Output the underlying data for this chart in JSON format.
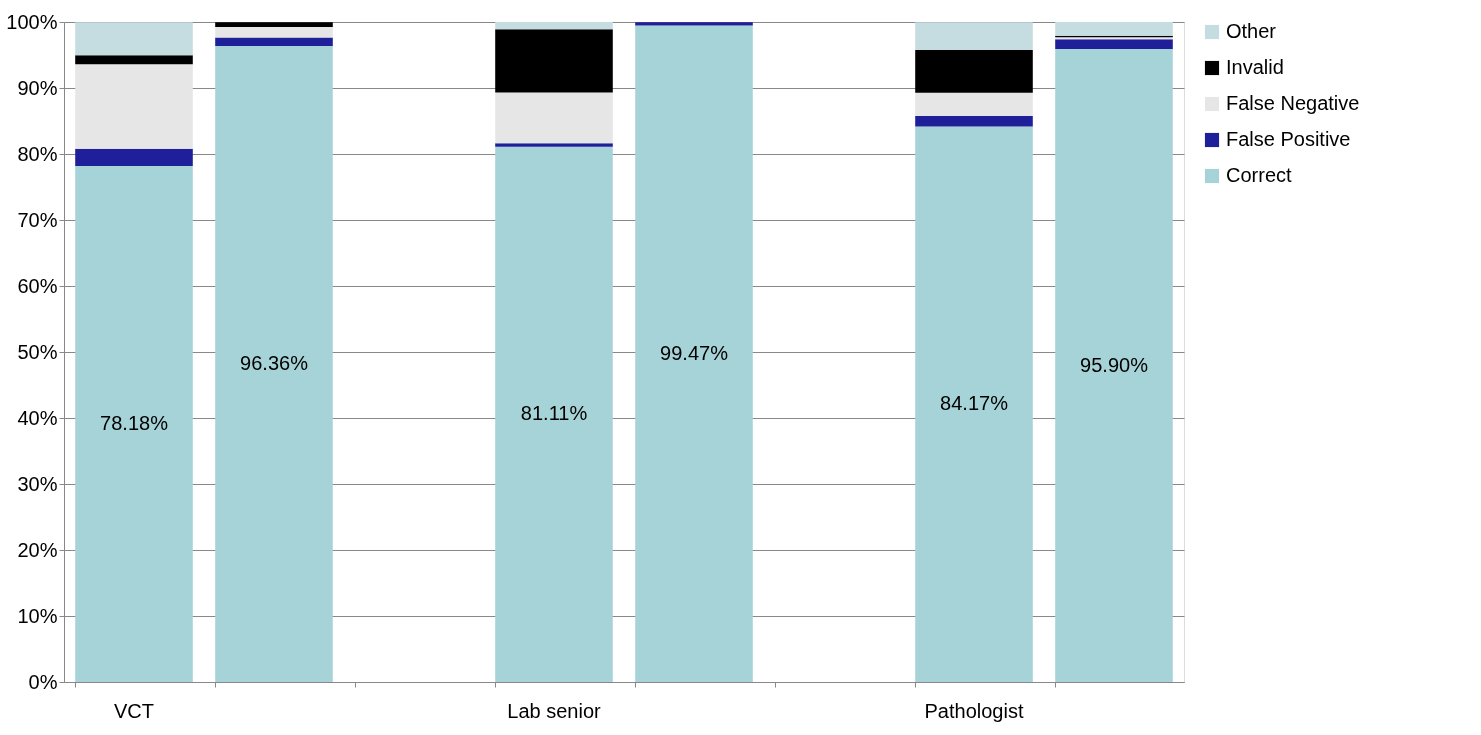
{
  "chart_data": {
    "type": "bar",
    "stacked": true,
    "categories": [
      "VCT",
      null,
      null,
      "Lab senior",
      null,
      null,
      "Pathologist",
      null
    ],
    "series": [
      {
        "name": "Correct",
        "color": "#a6d3d7",
        "values": [
          78.18,
          96.36,
          null,
          81.11,
          99.47,
          null,
          84.17,
          95.9
        ],
        "value_labels": [
          "78.18%",
          "96.36%",
          null,
          "81.11%",
          "99.47%",
          null,
          "84.17%",
          "95.90%"
        ]
      },
      {
        "name": "False Positive",
        "color": "#1f1f9a",
        "values": [
          2.6,
          1.3,
          null,
          0.5,
          0.5,
          null,
          1.6,
          1.5
        ]
      },
      {
        "name": "False Negative",
        "color": "#e6e6e6",
        "values": [
          12.8,
          1.6,
          null,
          7.7,
          0,
          null,
          3.5,
          0.3
        ]
      },
      {
        "name": "Invalid",
        "color": "#000000",
        "values": [
          1.4,
          0.7,
          null,
          9.6,
          0,
          null,
          6.5,
          0.2
        ]
      },
      {
        "name": "Other",
        "color": "#c5dde0",
        "values": [
          5.0,
          0,
          null,
          1.1,
          0,
          null,
          4.2,
          2.1
        ]
      }
    ],
    "ylim": [
      0,
      100
    ],
    "yticks": [
      {
        "value": 0,
        "label": "0%"
      },
      {
        "value": 10,
        "label": "10%"
      },
      {
        "value": 20,
        "label": "20%"
      },
      {
        "value": 30,
        "label": "30%"
      },
      {
        "value": 40,
        "label": "40%"
      },
      {
        "value": 50,
        "label": "50%"
      },
      {
        "value": 60,
        "label": "60%"
      },
      {
        "value": 70,
        "label": "70%"
      },
      {
        "value": 80,
        "label": "80%"
      },
      {
        "value": 90,
        "label": "90%"
      },
      {
        "value": 100,
        "label": "100%"
      }
    ],
    "grid": "y",
    "legend": "right"
  }
}
